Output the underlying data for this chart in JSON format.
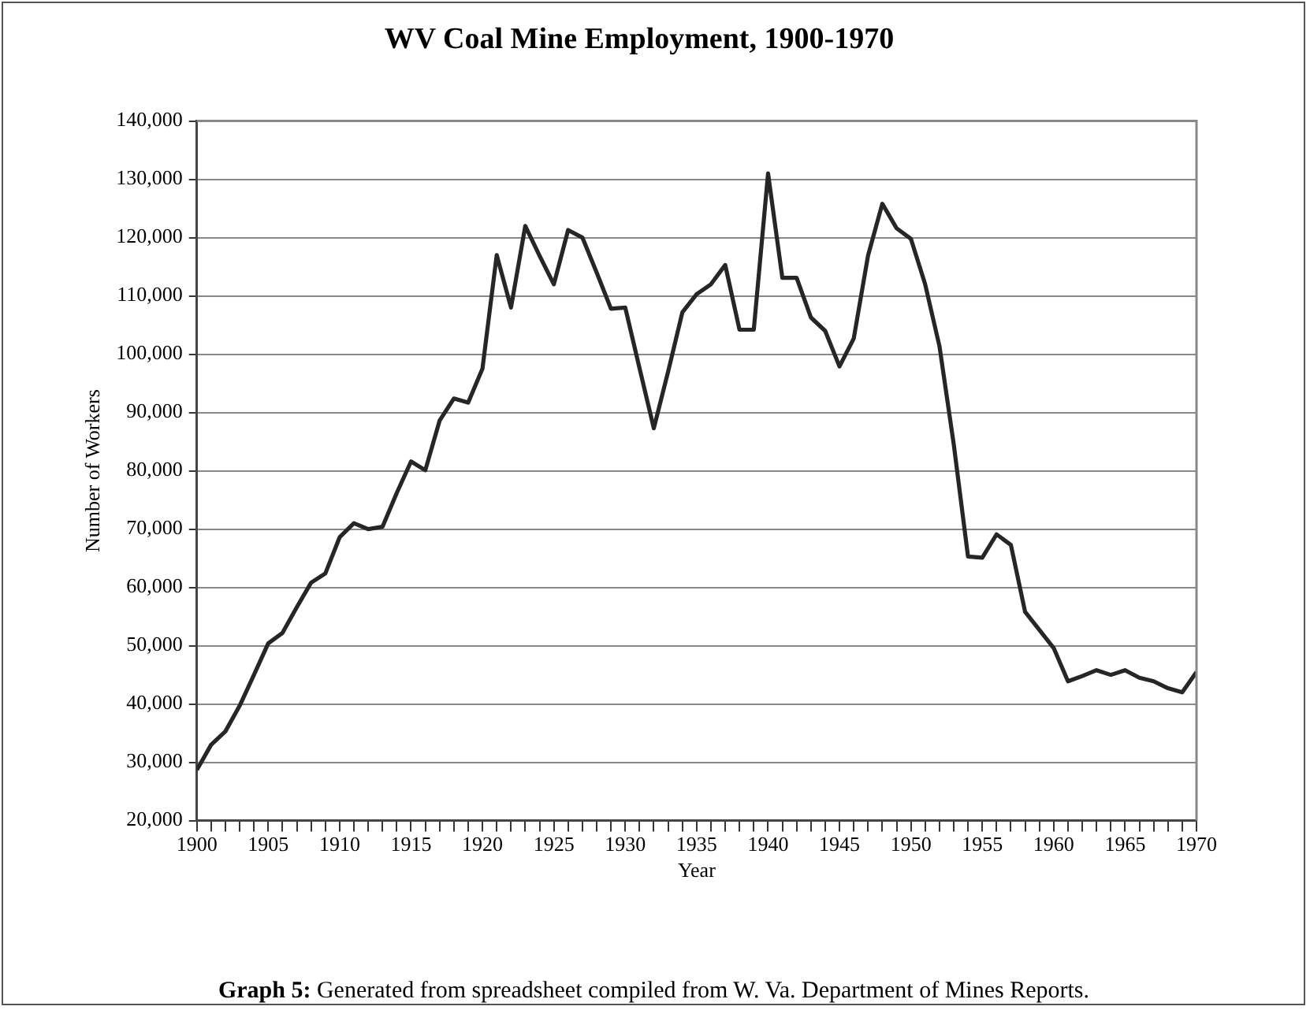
{
  "chart_data": {
    "type": "line",
    "title": "WV Coal Mine Employment, 1900-1970",
    "xlabel": "Year",
    "ylabel": "Number of Workers",
    "x": [
      1900,
      1901,
      1902,
      1903,
      1904,
      1905,
      1906,
      1907,
      1908,
      1909,
      1910,
      1911,
      1912,
      1913,
      1914,
      1915,
      1916,
      1917,
      1918,
      1919,
      1920,
      1921,
      1922,
      1923,
      1924,
      1925,
      1926,
      1927,
      1928,
      1929,
      1930,
      1931,
      1932,
      1933,
      1934,
      1935,
      1936,
      1937,
      1938,
      1939,
      1940,
      1941,
      1942,
      1943,
      1944,
      1945,
      1946,
      1947,
      1948,
      1949,
      1950,
      1951,
      1952,
      1953,
      1954,
      1955,
      1956,
      1957,
      1958,
      1959,
      1960,
      1961,
      1962,
      1963,
      1964,
      1965,
      1966,
      1967,
      1968,
      1969,
      1970
    ],
    "values": [
      28700,
      33000,
      35300,
      39700,
      45000,
      50400,
      52200,
      56600,
      60800,
      62400,
      68600,
      71000,
      70000,
      70400,
      76200,
      81600,
      80100,
      88600,
      92400,
      91700,
      97500,
      117000,
      108000,
      122000,
      116900,
      112000,
      121300,
      120000,
      114000,
      107800,
      108000,
      97600,
      87300,
      97000,
      107200,
      110300,
      112000,
      115300,
      104200,
      104200,
      131000,
      113100,
      113100,
      106300,
      104000,
      97900,
      102700,
      116900,
      125800,
      121600,
      119800,
      112000,
      101400,
      84600,
      65300,
      65100,
      69100,
      67300,
      55800,
      52700,
      49600,
      43900,
      44800,
      45800,
      45000,
      45800,
      44500,
      43900,
      42700,
      42000,
      45500
    ],
    "color": "#262626",
    "marker": "none",
    "xlim": [
      1900,
      1970
    ],
    "xticks": [
      1900,
      {
        "value": 1901,
        "label": null
      },
      {
        "value": 1902,
        "label": null
      },
      {
        "value": 1903,
        "label": null
      },
      {
        "value": 1904,
        "label": null
      },
      1905,
      {
        "value": 1906,
        "label": null
      },
      {
        "value": 1907,
        "label": null
      },
      {
        "value": 1908,
        "label": null
      },
      {
        "value": 1909,
        "label": null
      },
      1910,
      {
        "value": 1911,
        "label": null
      },
      {
        "value": 1912,
        "label": null
      },
      {
        "value": 1913,
        "label": null
      },
      {
        "value": 1914,
        "label": null
      },
      1915,
      {
        "value": 1916,
        "label": null
      },
      {
        "value": 1917,
        "label": null
      },
      {
        "value": 1918,
        "label": null
      },
      {
        "value": 1919,
        "label": null
      },
      1920,
      {
        "value": 1921,
        "label": null
      },
      {
        "value": 1922,
        "label": null
      },
      {
        "value": 1923,
        "label": null
      },
      {
        "value": 1924,
        "label": null
      },
      1925,
      {
        "value": 1926,
        "label": null
      },
      {
        "value": 1927,
        "label": null
      },
      {
        "value": 1928,
        "label": null
      },
      {
        "value": 1929,
        "label": null
      },
      1930,
      {
        "value": 1931,
        "label": null
      },
      {
        "value": 1932,
        "label": null
      },
      {
        "value": 1933,
        "label": null
      },
      {
        "value": 1934,
        "label": null
      },
      1935,
      {
        "value": 1936,
        "label": null
      },
      {
        "value": 1937,
        "label": null
      },
      {
        "value": 1938,
        "label": null
      },
      {
        "value": 1939,
        "label": null
      },
      1940,
      {
        "value": 1941,
        "label": null
      },
      {
        "value": 1942,
        "label": null
      },
      {
        "value": 1943,
        "label": null
      },
      {
        "value": 1944,
        "label": null
      },
      1945,
      {
        "value": 1946,
        "label": null
      },
      {
        "value": 1947,
        "label": null
      },
      {
        "value": 1948,
        "label": null
      },
      {
        "value": 1949,
        "label": null
      },
      1950,
      {
        "value": 1951,
        "label": null
      },
      {
        "value": 1952,
        "label": null
      },
      {
        "value": 1953,
        "label": null
      },
      {
        "value": 1954,
        "label": null
      },
      1955,
      {
        "value": 1956,
        "label": null
      },
      {
        "value": 1957,
        "label": null
      },
      {
        "value": 1958,
        "label": null
      },
      {
        "value": 1959,
        "label": null
      },
      1960,
      {
        "value": 1961,
        "label": null
      },
      {
        "value": 1962,
        "label": null
      },
      {
        "value": 1963,
        "label": null
      },
      {
        "value": 1964,
        "label": null
      },
      1965,
      {
        "value": 1966,
        "label": null
      },
      {
        "value": 1967,
        "label": null
      },
      {
        "value": 1968,
        "label": null
      },
      {
        "value": 1969,
        "label": null
      },
      1970
    ],
    "ylim": [
      20000,
      140000
    ],
    "yticks": [
      {
        "value": 20000,
        "label": "20,000"
      },
      {
        "value": 30000,
        "label": "30,000"
      },
      {
        "value": 40000,
        "label": "40,000"
      },
      {
        "value": 50000,
        "label": "50,000"
      },
      {
        "value": 60000,
        "label": "60,000"
      },
      {
        "value": 70000,
        "label": "70,000"
      },
      {
        "value": 80000,
        "label": "80,000"
      },
      {
        "value": 90000,
        "label": "90,000"
      },
      {
        "value": 100000,
        "label": "100,000"
      },
      {
        "value": 110000,
        "label": "110,000"
      },
      {
        "value": 120000,
        "label": "120,000"
      },
      {
        "value": 130000,
        "label": "130,000"
      },
      {
        "value": 140000,
        "label": "140,000"
      }
    ],
    "grid": "y",
    "annotations": [
      "Graph 5: Generated from spreadsheet compiled from W. Va. Department of Mines Reports."
    ]
  }
}
